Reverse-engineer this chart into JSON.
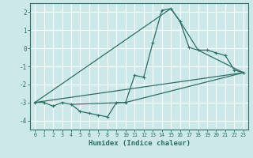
{
  "xlabel": "Humidex (Indice chaleur)",
  "ylabel": "",
  "background_color": "#cce8e8",
  "grid_color": "#ffffff",
  "line_color": "#2d6e65",
  "xlim": [
    -0.5,
    23.5
  ],
  "ylim": [
    -4.5,
    2.5
  ],
  "xticks": [
    0,
    1,
    2,
    3,
    4,
    5,
    6,
    7,
    8,
    9,
    10,
    11,
    12,
    13,
    14,
    15,
    16,
    17,
    18,
    19,
    20,
    21,
    22,
    23
  ],
  "yticks": [
    -4,
    -3,
    -2,
    -1,
    0,
    1,
    2
  ],
  "line1_x": [
    0,
    1,
    2,
    3,
    4,
    5,
    6,
    7,
    8,
    9,
    10,
    11,
    12,
    13,
    14,
    15,
    16,
    17,
    18,
    19,
    20,
    21,
    22,
    23
  ],
  "line1_y": [
    -3.0,
    -3.0,
    -3.2,
    -3.0,
    -3.1,
    -3.5,
    -3.6,
    -3.7,
    -3.8,
    -3.0,
    -3.0,
    -1.5,
    -1.6,
    0.3,
    2.1,
    2.2,
    1.5,
    0.05,
    -0.1,
    -0.1,
    -0.25,
    -0.4,
    -1.2,
    -1.35
  ],
  "line2_x": [
    4,
    10,
    23
  ],
  "line2_y": [
    -3.1,
    -3.0,
    -1.35
  ],
  "line3_x": [
    0,
    15,
    16,
    18,
    23
  ],
  "line3_y": [
    -3.0,
    2.2,
    1.5,
    -0.1,
    -1.35
  ],
  "line4_x": [
    0,
    23
  ],
  "line4_y": [
    -3.0,
    -1.35
  ]
}
